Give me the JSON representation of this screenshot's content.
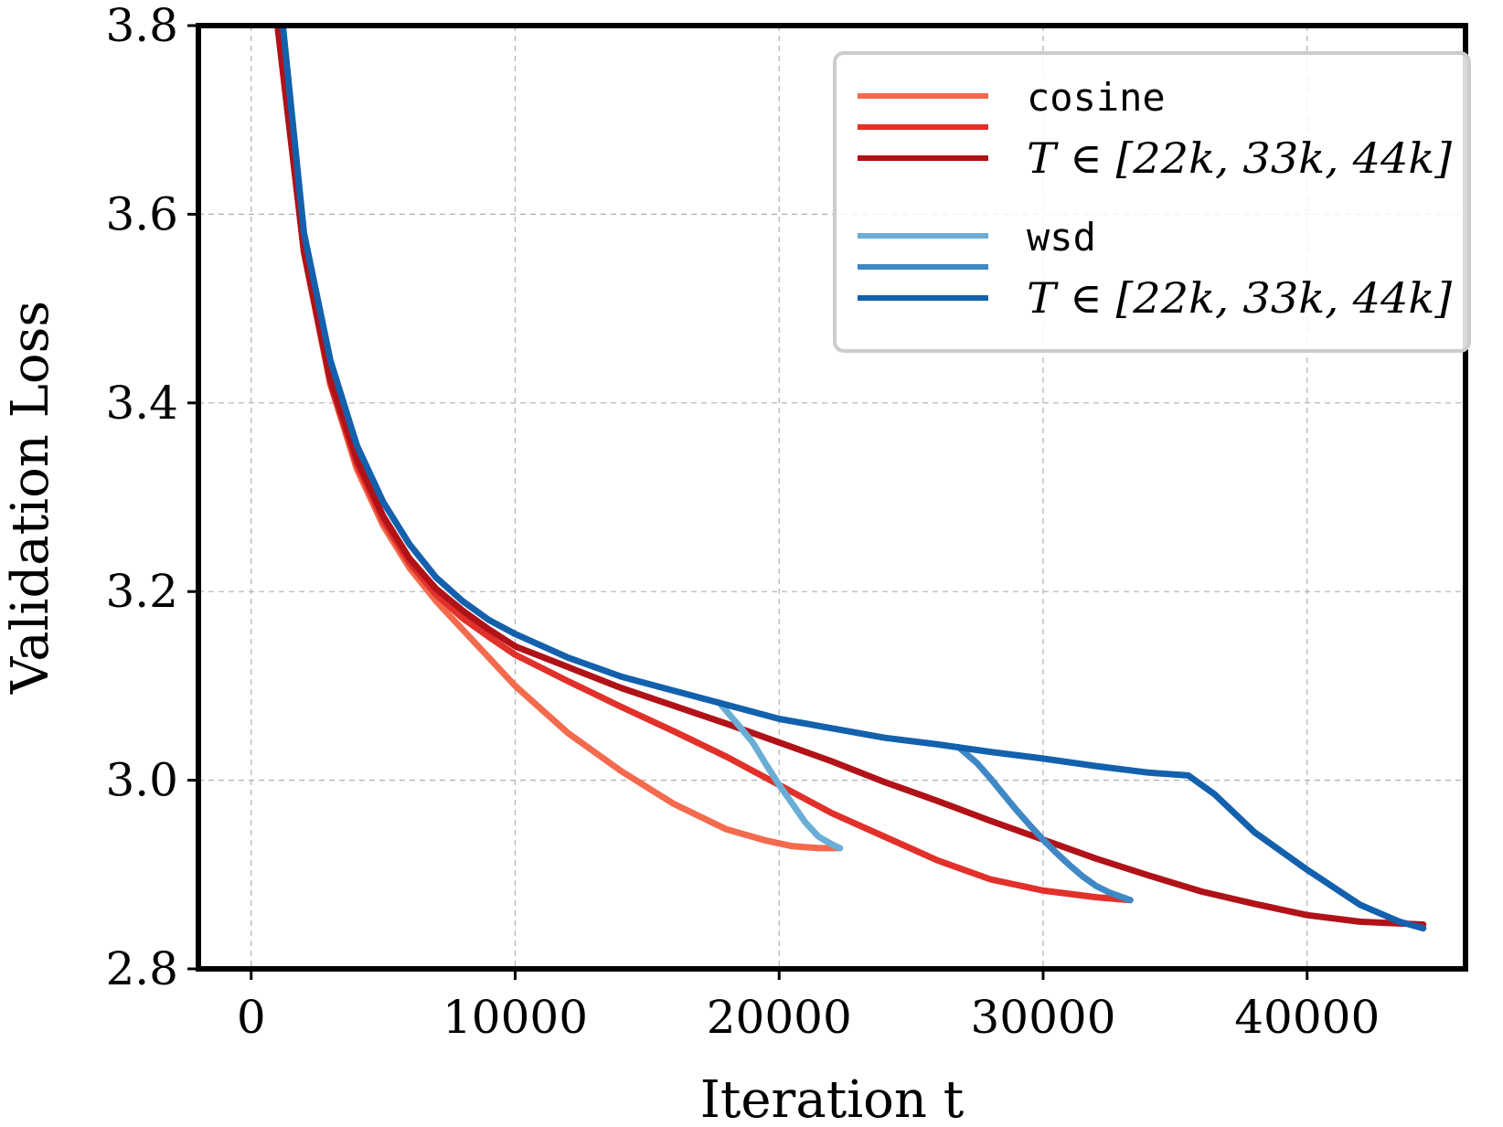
{
  "chart_data": {
    "type": "line",
    "xlabel": "Iteration t",
    "ylabel": "Validation Loss",
    "xlim": [
      -2000,
      46000
    ],
    "ylim": [
      2.8,
      3.8
    ],
    "xticks": [
      0,
      10000,
      20000,
      30000,
      40000
    ],
    "xtick_labels": [
      "0",
      "10000",
      "20000",
      "30000",
      "40000"
    ],
    "yticks": [
      2.8,
      3.0,
      3.2,
      3.4,
      3.6,
      3.8
    ],
    "ytick_labels": [
      "2.8",
      "3.0",
      "3.2",
      "3.4",
      "3.6",
      "3.8"
    ],
    "grid": true,
    "legend": {
      "position": "top-right",
      "groups": [
        {
          "name": "cosine",
          "description": "T ∈ [22k, 33k, 44k]",
          "colors": [
            "#f46a4d",
            "#e2302a",
            "#b01218"
          ]
        },
        {
          "name": "wsd",
          "description": "T ∈ [22k, 33k, 44k]",
          "colors": [
            "#6aaed6",
            "#3f88c5",
            "#1361ad"
          ]
        }
      ]
    },
    "series": [
      {
        "name": "cosine T=22k",
        "color": "#f46a4d",
        "x": [
          1000,
          2000,
          3000,
          4000,
          5000,
          6000,
          7000,
          8000,
          9000,
          10000,
          12000,
          14000,
          16000,
          18000,
          19500,
          20500,
          21500,
          22300
        ],
        "y": [
          3.8,
          3.56,
          3.42,
          3.33,
          3.27,
          3.225,
          3.19,
          3.16,
          3.13,
          3.1,
          3.05,
          3.01,
          2.975,
          2.948,
          2.936,
          2.93,
          2.928,
          2.928
        ]
      },
      {
        "name": "cosine T=33k",
        "color": "#e2302a",
        "x": [
          1000,
          2000,
          3000,
          4000,
          5000,
          6000,
          7000,
          8000,
          9000,
          10000,
          12000,
          14000,
          16000,
          18000,
          20000,
          22000,
          24000,
          26000,
          28000,
          30000,
          32000,
          33300
        ],
        "y": [
          3.8,
          3.56,
          3.42,
          3.335,
          3.275,
          3.23,
          3.197,
          3.172,
          3.152,
          3.133,
          3.105,
          3.078,
          3.052,
          3.025,
          2.995,
          2.965,
          2.94,
          2.915,
          2.895,
          2.883,
          2.876,
          2.873
        ]
      },
      {
        "name": "cosine T=44k",
        "color": "#b01218",
        "x": [
          1000,
          2000,
          3000,
          4000,
          5000,
          6000,
          7000,
          8000,
          9000,
          10000,
          12000,
          14000,
          16000,
          18000,
          20000,
          22000,
          24000,
          26000,
          28000,
          30000,
          32000,
          34000,
          36000,
          38000,
          40000,
          42000,
          44400
        ],
        "y": [
          3.8,
          3.56,
          3.425,
          3.34,
          3.28,
          3.235,
          3.203,
          3.18,
          3.16,
          3.142,
          3.12,
          3.098,
          3.079,
          3.06,
          3.04,
          3.02,
          2.998,
          2.978,
          2.957,
          2.937,
          2.917,
          2.899,
          2.882,
          2.869,
          2.857,
          2.85,
          2.847
        ]
      },
      {
        "name": "wsd T=22k",
        "color": "#6aaed6",
        "x": [
          17800,
          18500,
          19000,
          19500,
          20000,
          20500,
          21000,
          21500,
          22000,
          22300
        ],
        "y": [
          3.08,
          3.057,
          3.04,
          3.017,
          2.995,
          2.975,
          2.955,
          2.94,
          2.932,
          2.928
        ]
      },
      {
        "name": "wsd T=33k",
        "color": "#3f88c5",
        "x": [
          26800,
          27500,
          28000,
          28500,
          29000,
          29500,
          30000,
          30500,
          31000,
          31500,
          32000,
          32500,
          33000,
          33300
        ],
        "y": [
          3.035,
          3.018,
          3.002,
          2.985,
          2.968,
          2.952,
          2.937,
          2.923,
          2.91,
          2.898,
          2.888,
          2.881,
          2.876,
          2.873
        ]
      },
      {
        "name": "wsd T=44k",
        "color": "#1361ad",
        "x": [
          1200,
          2000,
          3000,
          4000,
          5000,
          6000,
          7000,
          8000,
          9000,
          10000,
          12000,
          14000,
          16000,
          18000,
          20000,
          22000,
          24000,
          26000,
          28000,
          30000,
          32000,
          34000,
          35500,
          36500,
          38000,
          40000,
          42000,
          43500,
          44400
        ],
        "y": [
          3.8,
          3.58,
          3.445,
          3.355,
          3.295,
          3.25,
          3.215,
          3.19,
          3.17,
          3.155,
          3.13,
          3.11,
          3.095,
          3.08,
          3.065,
          3.055,
          3.045,
          3.038,
          3.03,
          3.023,
          3.015,
          3.008,
          3.005,
          2.985,
          2.945,
          2.905,
          2.868,
          2.85,
          2.843
        ]
      }
    ]
  }
}
